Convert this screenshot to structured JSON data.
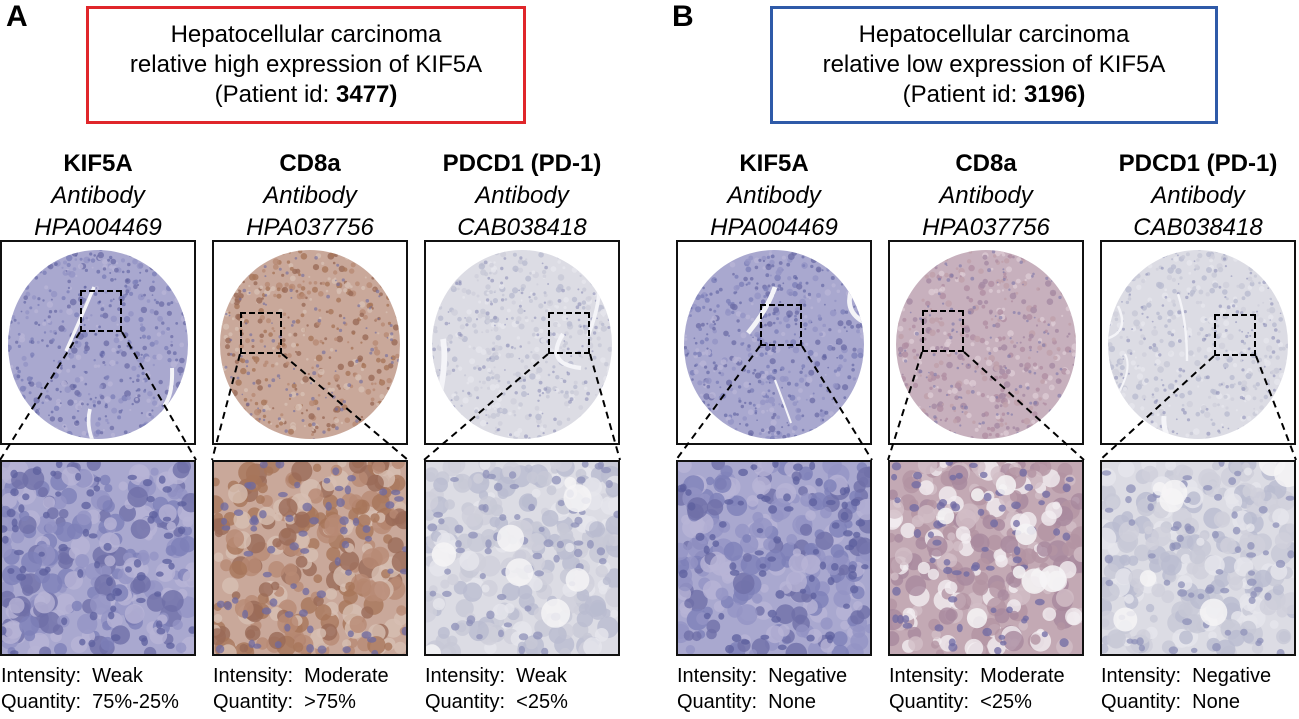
{
  "panels": [
    {
      "letter": "A",
      "box_title_line1": "Hepatocellular carcinoma",
      "box_title_line2": "relative high expression of KIF5A",
      "patient_prefix": "(Patient id: ",
      "patient_id": "3477)",
      "box_color": "#e0262a",
      "columns": [
        {
          "marker": "KIF5A",
          "antibody_label": "Antibody",
          "antibody_id": "HPA004469",
          "intensity_label": "Intensity:",
          "intensity": "Weak",
          "quantity_label": "Quantity:",
          "quantity": "75%-25%"
        },
        {
          "marker": "CD8a",
          "antibody_label": "Antibody",
          "antibody_id": "HPA037756",
          "intensity_label": "Intensity:",
          "intensity": "Moderate",
          "quantity_label": "Quantity:",
          "quantity": ">75%"
        },
        {
          "marker": "PDCD1 (PD-1)",
          "antibody_label": "Antibody",
          "antibody_id": "CAB038418",
          "intensity_label": "Intensity:",
          "intensity": "Weak",
          "quantity_label": "Quantity:",
          "quantity": "<25%"
        }
      ]
    },
    {
      "letter": "B",
      "box_title_line1": "Hepatocellular carcinoma",
      "box_title_line2": "relative low expression of KIF5A",
      "patient_prefix": "(Patient id: ",
      "patient_id": "3196)",
      "box_color": "#2f5aa8",
      "columns": [
        {
          "marker": "KIF5A",
          "antibody_label": "Antibody",
          "antibody_id": "HPA004469",
          "intensity_label": "Intensity:",
          "intensity": "Negative",
          "quantity_label": "Quantity:",
          "quantity": "None"
        },
        {
          "marker": "CD8a",
          "antibody_label": "Antibody",
          "antibody_id": "HPA037756",
          "intensity_label": "Intensity:",
          "intensity": "Moderate",
          "quantity_label": "Quantity:",
          "quantity": "<25%"
        },
        {
          "marker": "PDCD1 (PD-1)",
          "antibody_label": "Antibody",
          "antibody_id": "CAB038418",
          "intensity_label": "Intensity:",
          "intensity": "Negative",
          "quantity_label": "Quantity:",
          "quantity": "None"
        }
      ]
    }
  ],
  "stain_colors": {
    "blue_hematoxylin": "#8a8cc0",
    "brown_dab": "#a8765a",
    "pale_grey": "#d4d4dc",
    "pink_moderate": "#bfa0aa"
  }
}
